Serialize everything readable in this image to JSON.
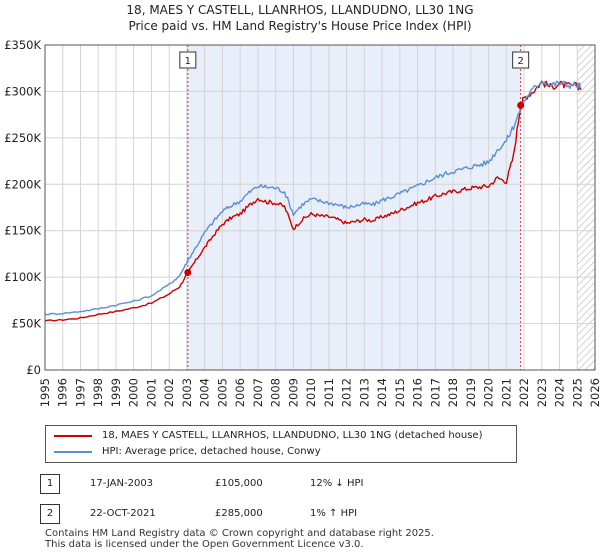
{
  "title": {
    "line1": "18, MAES Y CASTELL, LLANRHOS, LLANDUDNO, LL30 1NG",
    "line2": "Price paid vs. HM Land Registry's House Price Index (HPI)"
  },
  "chart_data": {
    "type": "line",
    "xlim": [
      1995,
      2026
    ],
    "ylim": [
      0,
      350000
    ],
    "x_ticks": [
      "1995",
      "1996",
      "1997",
      "1998",
      "1999",
      "2000",
      "2001",
      "2002",
      "2003",
      "2004",
      "2005",
      "2006",
      "2007",
      "2008",
      "2009",
      "2010",
      "2011",
      "2012",
      "2013",
      "2014",
      "2015",
      "2016",
      "2017",
      "2018",
      "2019",
      "2020",
      "2021",
      "2022",
      "2023",
      "2024",
      "2025",
      "2026"
    ],
    "y_ticks": [
      {
        "value": 0,
        "label": "£0"
      },
      {
        "value": 50000,
        "label": "£50K"
      },
      {
        "value": 100000,
        "label": "£100K"
      },
      {
        "value": 150000,
        "label": "£150K"
      },
      {
        "value": 200000,
        "label": "£200K"
      },
      {
        "value": 250000,
        "label": "£250K"
      },
      {
        "value": 300000,
        "label": "£300K"
      },
      {
        "value": 350000,
        "label": "£350K"
      }
    ],
    "shaded_period": [
      2003.05,
      2021.81
    ],
    "future_hatch_from": 2025.0,
    "series": [
      {
        "name": "18, MAES Y CASTELL, LLANRHOS, LLANDUDNO, LL30 1NG (detached house)",
        "color": "#cc0000",
        "x": [
          1995,
          1996,
          1997,
          1998,
          1999,
          2000,
          2001,
          2002,
          2002.6,
          2003.05,
          2003.5,
          2004,
          2004.5,
          2005,
          2005.5,
          2006,
          2006.5,
          2007,
          2007.5,
          2008,
          2008.5,
          2009,
          2009.5,
          2010,
          2010.5,
          2011,
          2011.5,
          2012,
          2012.5,
          2013,
          2013.5,
          2014,
          2014.5,
          2015,
          2015.5,
          2016,
          2016.5,
          2017,
          2017.5,
          2018,
          2018.5,
          2019,
          2019.5,
          2020,
          2020.5,
          2021,
          2021.4,
          2021.81,
          2022,
          2022.5,
          2023,
          2023.5,
          2024,
          2024.5,
          2025,
          2025.2
        ],
        "values": [
          53000,
          54000,
          56000,
          60000,
          63000,
          67000,
          72000,
          82000,
          90000,
          105000,
          118000,
          132000,
          145000,
          157000,
          164000,
          168000,
          177000,
          185000,
          181000,
          180000,
          176000,
          152000,
          162000,
          168000,
          166000,
          165000,
          162000,
          158000,
          160000,
          162000,
          161000,
          165000,
          168000,
          172000,
          176000,
          180000,
          183000,
          187000,
          190000,
          192000,
          194000,
          196000,
          197000,
          198000,
          207000,
          203000,
          230000,
          285000,
          293000,
          300000,
          310000,
          305000,
          308000,
          306000,
          306000,
          304000
        ]
      },
      {
        "name": "HPI: Average price, detached house, Conwy",
        "color": "#5b8fd4",
        "x": [
          1995,
          1996,
          1997,
          1998,
          1999,
          2000,
          2001,
          2002,
          2002.6,
          2003.05,
          2003.5,
          2004,
          2004.5,
          2005,
          2005.5,
          2006,
          2006.5,
          2007,
          2007.5,
          2008,
          2008.5,
          2009,
          2009.5,
          2010,
          2010.5,
          2011,
          2011.5,
          2012,
          2012.5,
          2013,
          2013.5,
          2014,
          2014.5,
          2015,
          2015.5,
          2016,
          2016.5,
          2017,
          2017.5,
          2018,
          2018.5,
          2019,
          2019.5,
          2020,
          2020.5,
          2021,
          2021.4,
          2021.81,
          2022,
          2022.5,
          2023,
          2023.5,
          2024,
          2024.5,
          2025,
          2025.2
        ],
        "values": [
          60000,
          61000,
          63000,
          66000,
          70000,
          74000,
          80000,
          92000,
          102000,
          118000,
          132000,
          148000,
          160000,
          171000,
          177000,
          182000,
          191000,
          198000,
          197000,
          196000,
          192000,
          168000,
          178000,
          184000,
          182000,
          180000,
          178000,
          175000,
          177000,
          179000,
          178000,
          183000,
          186000,
          190000,
          194000,
          198000,
          203000,
          207000,
          211000,
          214000,
          216000,
          219000,
          221000,
          224000,
          237000,
          247000,
          262000,
          281000,
          290000,
          302000,
          312000,
          307000,
          309000,
          307000,
          307000,
          305000
        ]
      }
    ],
    "annotations": [
      {
        "label": "1",
        "x": 2003.05,
        "value": 105000
      },
      {
        "label": "2",
        "x": 2021.81,
        "value": 285000
      }
    ]
  },
  "legend": {
    "items": [
      {
        "label": "18, MAES Y CASTELL, LLANRHOS, LLANDUDNO, LL30 1NG (detached house)",
        "color": "#cc0000"
      },
      {
        "label": "HPI: Average price, detached house, Conwy",
        "color": "#5b8fd4"
      }
    ]
  },
  "transactions": [
    {
      "label": "1",
      "date": "17-JAN-2003",
      "price": "£105,000",
      "hpi": "12% ↓ HPI"
    },
    {
      "label": "2",
      "date": "22-OCT-2021",
      "price": "£285,000",
      "hpi": "1% ↑ HPI"
    }
  ],
  "footer": {
    "line1": "Contains HM Land Registry data © Crown copyright and database right 2025.",
    "line2": "This data is licensed under the Open Government Licence v3.0."
  }
}
